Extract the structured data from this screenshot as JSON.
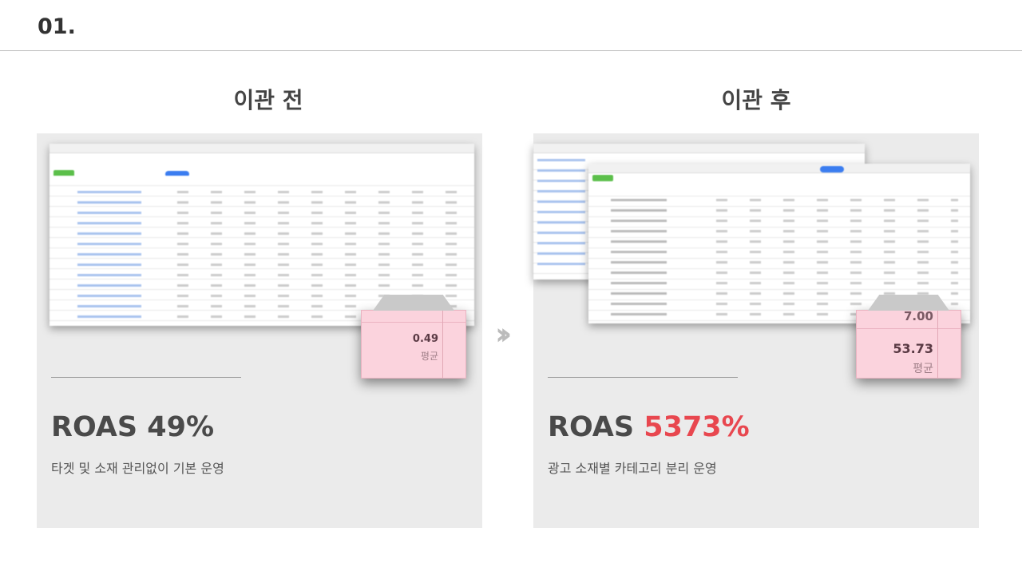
{
  "slide_number": "01.",
  "before": {
    "title": "이관 전",
    "popup_value": "0.49",
    "popup_label": "평균",
    "roas_label": "ROAS",
    "roas_value": "49%",
    "description": "타겟 및 소재 관리없이 기본 운영"
  },
  "after": {
    "title": "이관 후",
    "popup_prev_value": "7.00",
    "popup_value": "53.73",
    "popup_label": "평균",
    "roas_label": "ROAS",
    "roas_value": "5373%",
    "description": "광고 소재별 카테고리 분리 운영"
  },
  "arrow_icon": "double-chevron-right-icon",
  "colors": {
    "highlight": "#e8474f",
    "panel": "#ebebeb",
    "popup": "#fbd3dd"
  }
}
